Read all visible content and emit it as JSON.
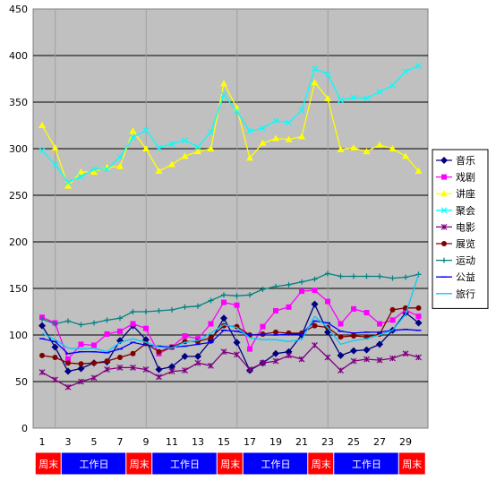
{
  "chart_data": {
    "type": "line",
    "title": "",
    "xlabel": "",
    "ylabel": "",
    "ylim": [
      0,
      450
    ],
    "yticks": [
      0,
      50,
      100,
      150,
      200,
      250,
      300,
      350,
      400,
      450
    ],
    "x": [
      1,
      2,
      3,
      4,
      5,
      6,
      7,
      8,
      9,
      10,
      11,
      12,
      13,
      14,
      15,
      16,
      17,
      18,
      19,
      20,
      21,
      22,
      23,
      24,
      25,
      26,
      27,
      28,
      29,
      30
    ],
    "xticks": [
      1,
      3,
      5,
      7,
      9,
      11,
      13,
      15,
      17,
      19,
      21,
      23,
      25,
      27,
      29
    ],
    "grid": "horizontal",
    "plot_background": "#c0c0c0",
    "legend_placement": "right",
    "weekend_dividers": [
      2,
      9,
      16,
      23
    ],
    "series": [
      {
        "name": "音乐",
        "color": "#000080",
        "marker": "diamond",
        "values": [
          110,
          87,
          61,
          64,
          70,
          71,
          94,
          110,
          95,
          63,
          66,
          77,
          77,
          94,
          118,
          92,
          62,
          70,
          80,
          82,
          100,
          133,
          103,
          78,
          83,
          84,
          90,
          105,
          124,
          113
        ]
      },
      {
        "name": "戏剧",
        "color": "#ff00ff",
        "marker": "square",
        "values": [
          119,
          113,
          74,
          90,
          89,
          101,
          104,
          112,
          107,
          80,
          87,
          99,
          96,
          112,
          135,
          132,
          85,
          109,
          126,
          130,
          147,
          148,
          136,
          112,
          128,
          124,
          112,
          116,
          127,
          120
        ]
      },
      {
        "name": "讲座",
        "color": "#ffff00",
        "marker": "triangle",
        "values": [
          325,
          301,
          260,
          275,
          275,
          280,
          281,
          319,
          300,
          276,
          283,
          292,
          297,
          300,
          370,
          344,
          290,
          306,
          311,
          310,
          313,
          371,
          354,
          299,
          301,
          297,
          304,
          300,
          292,
          276
        ]
      },
      {
        "name": "聚会",
        "color": "#00ffff",
        "marker": "x",
        "values": [
          298,
          283,
          264,
          270,
          278,
          278,
          291,
          312,
          320,
          301,
          305,
          309,
          302,
          318,
          358,
          340,
          319,
          322,
          330,
          328,
          341,
          386,
          380,
          352,
          355,
          354,
          361,
          368,
          383,
          389
        ]
      },
      {
        "name": "电影",
        "color": "#800080",
        "marker": "star",
        "values": [
          60,
          52,
          44,
          50,
          54,
          63,
          65,
          65,
          63,
          55,
          61,
          62,
          70,
          67,
          82,
          79,
          63,
          70,
          72,
          78,
          74,
          89,
          76,
          62,
          72,
          74,
          73,
          75,
          80,
          76
        ]
      },
      {
        "name": "展览",
        "color": "#800000",
        "marker": "circle",
        "values": [
          78,
          76,
          70,
          69,
          70,
          72,
          76,
          80,
          91,
          82,
          87,
          93,
          93,
          97,
          110,
          109,
          100,
          101,
          103,
          102,
          102,
          110,
          108,
          98,
          99,
          98,
          101,
          127,
          129,
          129
        ]
      },
      {
        "name": "运动",
        "color": "#008080",
        "marker": "plus",
        "values": [
          117,
          112,
          115,
          111,
          113,
          116,
          118,
          125,
          125,
          126,
          127,
          130,
          131,
          137,
          143,
          142,
          143,
          149,
          152,
          154,
          157,
          160,
          166,
          163,
          163,
          163,
          163,
          161,
          162,
          165
        ]
      },
      {
        "name": "公益",
        "color": "#0000ff",
        "marker": "dash",
        "values": [
          96,
          93,
          80,
          82,
          82,
          81,
          85,
          92,
          89,
          88,
          87,
          88,
          90,
          92,
          105,
          104,
          100,
          100,
          100,
          101,
          101,
          115,
          113,
          104,
          102,
          103,
          103,
          105,
          106,
          105
        ]
      },
      {
        "name": "旅行",
        "color": "#00ccff",
        "marker": "none",
        "values": [
          102,
          95,
          86,
          85,
          86,
          82,
          92,
          96,
          92,
          87,
          86,
          92,
          94,
          102,
          111,
          108,
          97,
          95,
          95,
          93,
          95,
          120,
          108,
          90,
          94,
          96,
          100,
          105,
          122,
          165
        ]
      }
    ],
    "bands": [
      {
        "label": "周末",
        "color": "#ff0000",
        "from": 0.5,
        "to": 2.5
      },
      {
        "label": "工作日",
        "color": "#0000ff",
        "from": 2.5,
        "to": 7.5
      },
      {
        "label": "周末",
        "color": "#ff0000",
        "from": 7.5,
        "to": 9.5
      },
      {
        "label": "工作日",
        "color": "#0000ff",
        "from": 9.5,
        "to": 14.5
      },
      {
        "label": "周末",
        "color": "#ff0000",
        "from": 14.5,
        "to": 16.5
      },
      {
        "label": "工作日",
        "color": "#0000ff",
        "from": 16.5,
        "to": 21.5
      },
      {
        "label": "周末",
        "color": "#ff0000",
        "from": 21.5,
        "to": 23.5
      },
      {
        "label": "工作日",
        "color": "#0000ff",
        "from": 23.5,
        "to": 28.5
      },
      {
        "label": "周末",
        "color": "#ff0000",
        "from": 28.5,
        "to": 30.5
      }
    ]
  }
}
